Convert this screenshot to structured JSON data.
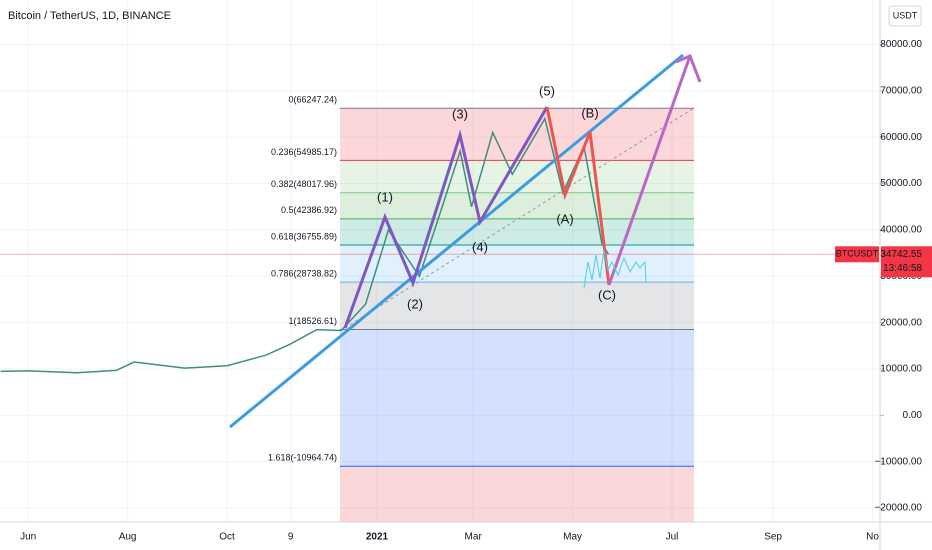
{
  "chart_data": {
    "type": "line",
    "title": "Bitcoin / TetherUS, 1D, BINANCE",
    "currency": "USDT",
    "series": [
      {
        "name": "BTCUSDT",
        "color": "#3d8f7c",
        "x": [
          "2020-05-15",
          "2020-06-01",
          "2020-07-01",
          "2020-07-25",
          "2020-08-05",
          "2020-09-05",
          "2020-10-01",
          "2020-10-25",
          "2020-11-09",
          "2020-11-25",
          "2020-12-10",
          "2020-12-25",
          "2021-01-08",
          "2021-01-27",
          "2021-02-10",
          "2021-02-21",
          "2021-02-28",
          "2021-03-13",
          "2021-03-25",
          "2021-04-14",
          "2021-04-25",
          "2021-05-08",
          "2021-05-19",
          "2021-05-23"
        ],
        "values": [
          9500,
          9600,
          9200,
          9700,
          11500,
          10200,
          10700,
          13000,
          15400,
          18500,
          18300,
          24000,
          40000,
          30000,
          45000,
          57000,
          45000,
          61000,
          52000,
          64000,
          48000,
          58000,
          37000,
          34742.55
        ]
      }
    ],
    "price_tag": {
      "symbol": "BTCUSDT",
      "value": 34742.55,
      "countdown": "13:46:58",
      "color": "#f23645"
    },
    "fib_levels": [
      {
        "value": 66247.24,
        "label": "0(66247.24)",
        "color": "#787b86"
      },
      {
        "value": 54985.17,
        "label": "0.236(54985.17)",
        "color": "#f23645"
      },
      {
        "value": 48017.96,
        "label": "0.382(48017.96)",
        "color": "#81c784"
      },
      {
        "value": 42386.92,
        "label": "0.5(42386.92)",
        "color": "#4caf50"
      },
      {
        "value": 36755.89,
        "label": "0.618(36755.89)",
        "color": "#089981"
      },
      {
        "value": 28738.82,
        "label": "0.786(28738.82)",
        "color": "#64b5f6"
      },
      {
        "value": 18526.61,
        "label": "1(18526.61)",
        "color": "#787b86"
      },
      {
        "value": -10964.74,
        "label": "1.618(-10964.74)",
        "color": "#2962ff"
      }
    ],
    "annotations": [
      "(1)",
      "(2)",
      "(3)",
      "(4)",
      "(5)",
      "(A)",
      "(B)",
      "(C)"
    ],
    "ylim": [
      -23000,
      87000
    ],
    "yticks": [
      {
        "value": 80000,
        "label": "80000.00"
      },
      {
        "value": 70000,
        "label": "70000.00"
      },
      {
        "value": 60000,
        "label": "60000.00"
      },
      {
        "value": 50000,
        "label": "50000.00"
      },
      {
        "value": 40000,
        "label": "40000.00"
      },
      {
        "value": 30000,
        "label": "30000.00"
      },
      {
        "value": 20000,
        "label": "20000.00"
      },
      {
        "value": 10000,
        "label": "10000.00"
      },
      {
        "value": 0,
        "label": "0.00"
      },
      {
        "value": -10000,
        "label": "−10000.00"
      },
      {
        "value": -20000,
        "label": "−20000.00"
      }
    ],
    "xticks": [
      {
        "value": "2020-06-01",
        "label": "Jun"
      },
      {
        "value": "2020-08-01",
        "label": "Aug"
      },
      {
        "value": "2020-10-01",
        "label": "Oct"
      },
      {
        "value": "2020-11-09",
        "label": "9"
      },
      {
        "value": "2021-01-01",
        "label": "2021"
      },
      {
        "value": "2021-03-01",
        "label": "Mar"
      },
      {
        "value": "2021-05-01",
        "label": "May"
      },
      {
        "value": "2021-07-01",
        "label": "Jul"
      },
      {
        "value": "2021-09-01",
        "label": "Sep"
      },
      {
        "value": "2021-11-01",
        "label": "No"
      }
    ],
    "grid": true
  }
}
